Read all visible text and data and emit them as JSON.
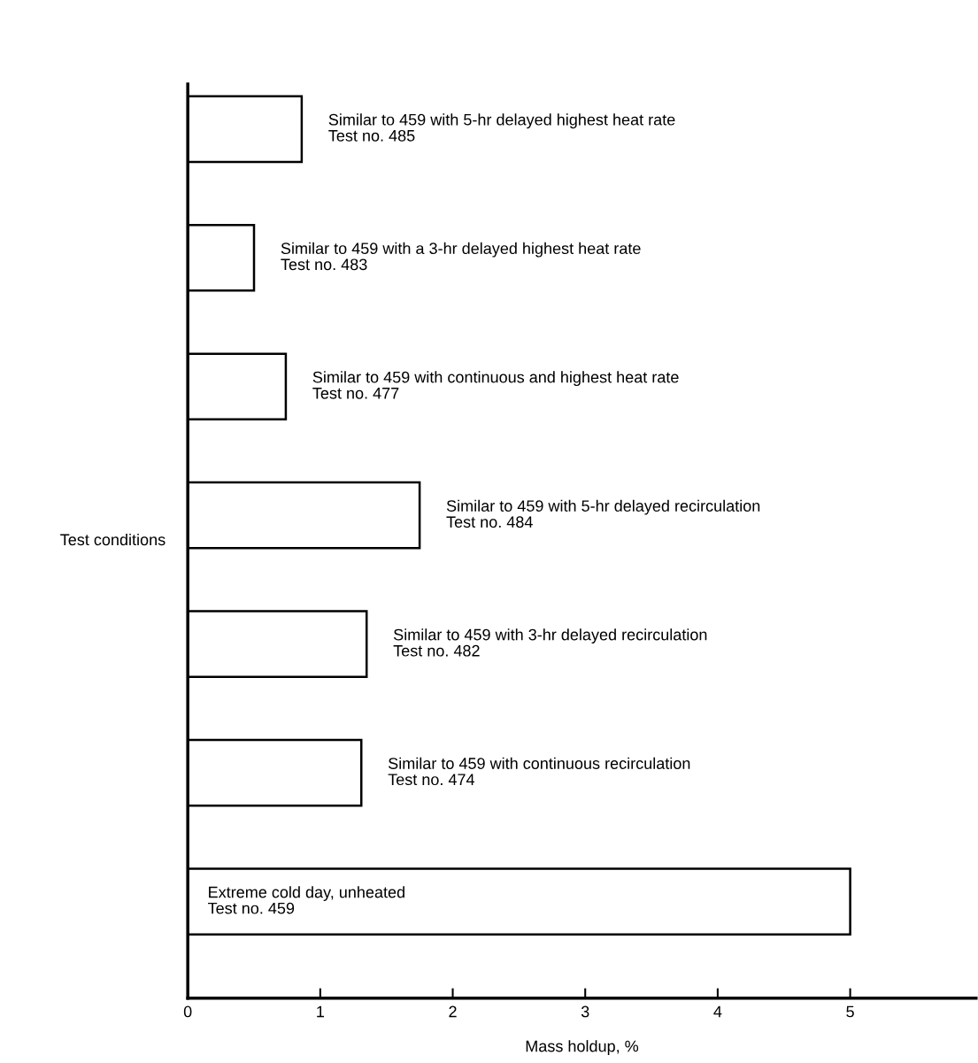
{
  "chart_data": {
    "type": "bar",
    "orientation": "horizontal",
    "categories": [
      "Similar to 459 with 5-hr delayed highest heat rate\nTest no. 485",
      "Similar to 459 with a 3-hr delayed highest heat rate\nTest no. 483",
      "Similar to 459 with continuous and highest heat rate\nTest no. 477",
      "Similar to 459 with 5-hr delayed recirculation\nTest no. 484",
      "Similar to 459 with 3-hr delayed recirculation\nTest no. 482",
      "Similar to 459 with continuous recirculation\nTest no. 474",
      "Extreme cold day, unheated\nTest no. 459"
    ],
    "values": [
      0.86,
      0.5,
      0.74,
      1.75,
      1.35,
      1.31,
      5.0
    ],
    "color": "#ffffff",
    "xlim": [
      0,
      5.95
    ],
    "xticks": [
      0,
      1,
      2,
      3,
      4,
      5
    ],
    "xlabel": "Mass holdup, %",
    "ylabel": "Test conditions",
    "grid": false,
    "legend": false
  }
}
